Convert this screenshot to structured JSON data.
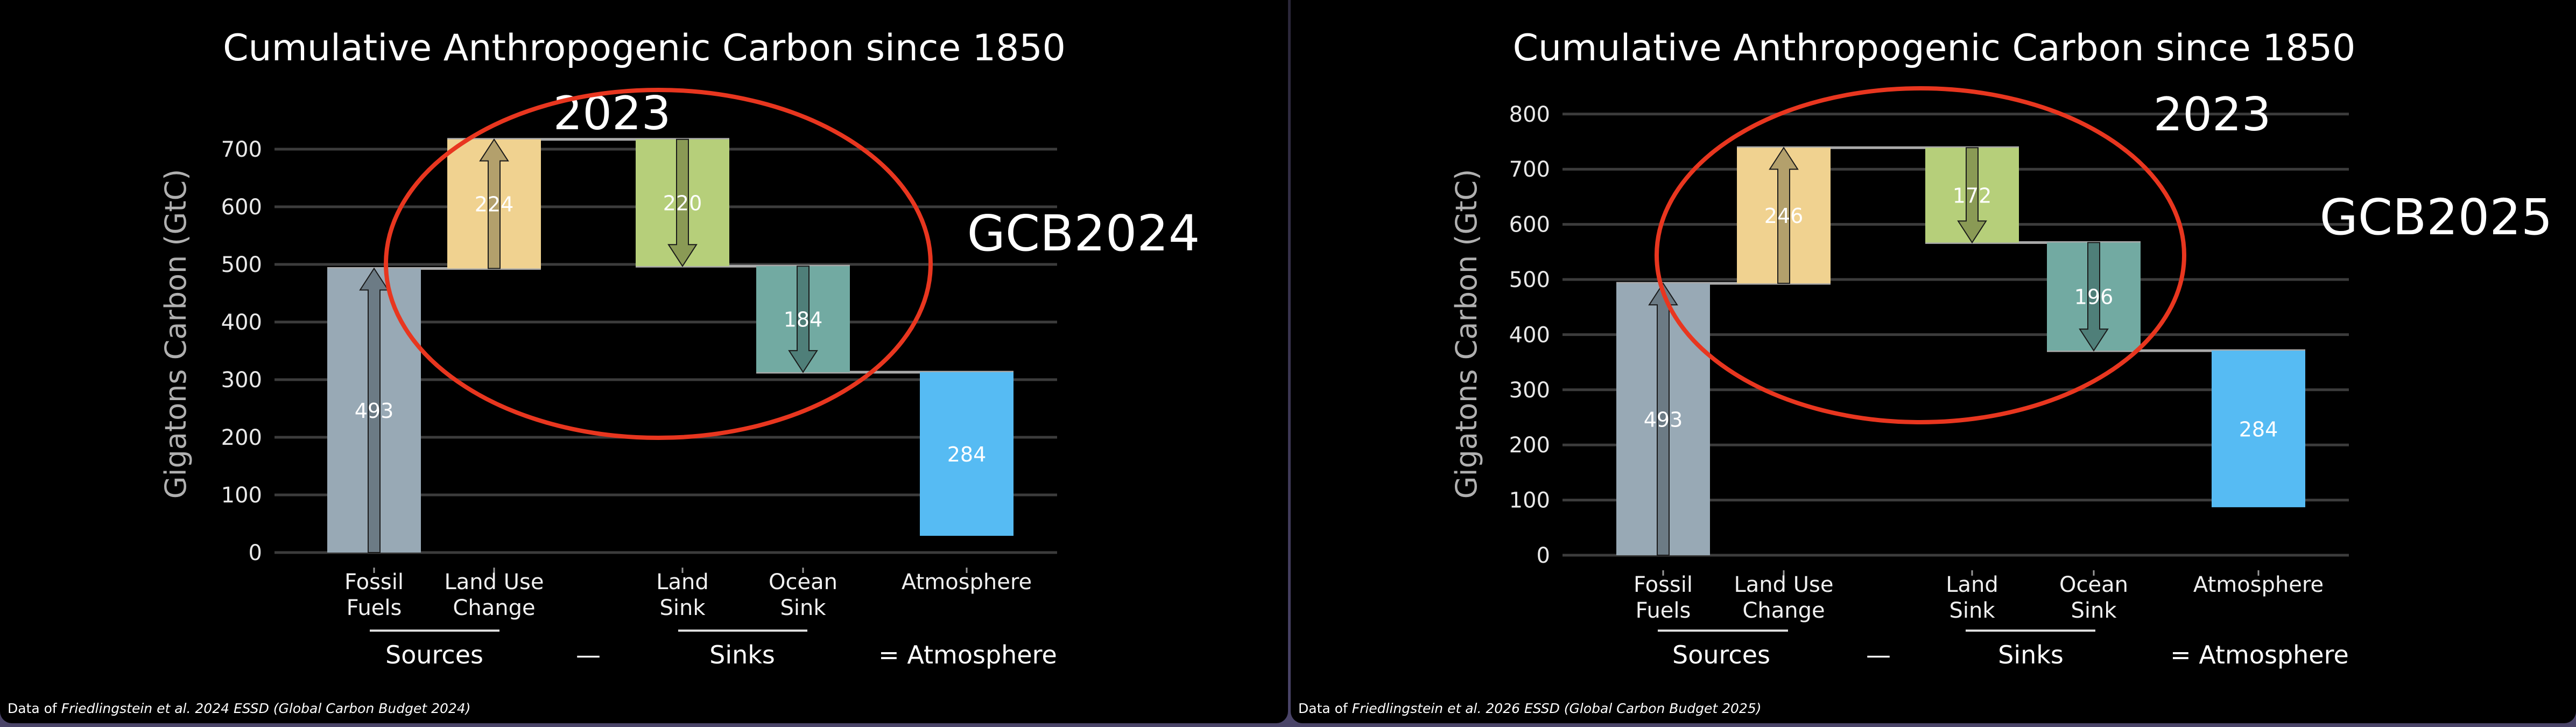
{
  "chart_data": [
    {
      "type": "bar",
      "subtype": "waterfall",
      "title": "Cumulative Anthropogenic Carbon since 1850",
      "ylabel": "Gigatons Carbon (GtC)",
      "ylim": [
        0,
        750
      ],
      "yticks": [
        0,
        100,
        200,
        300,
        400,
        500,
        600,
        700
      ],
      "grid": true,
      "categories": [
        [
          "Fossil",
          "Fuels"
        ],
        [
          "Land Use",
          "Change"
        ],
        [
          "Land",
          "Sink"
        ],
        [
          "Ocean",
          "Sink"
        ],
        [
          "Atmosphere"
        ]
      ],
      "values": [
        493,
        224,
        220,
        184,
        284
      ],
      "directions": [
        "up",
        "up",
        "down",
        "down",
        "none"
      ],
      "bar_ranges": [
        [
          0,
          493
        ],
        [
          493,
          717
        ],
        [
          497,
          717
        ],
        [
          313,
          497
        ],
        [
          29,
          313
        ]
      ],
      "colors": [
        "#98a9b5",
        "#f0d290",
        "#b6cf7a",
        "#72aaa2",
        "#56bbf3"
      ],
      "arrow_colors": [
        "#6c7b85",
        "#b3a06c",
        "#8a9a55",
        "#4f7f79",
        null
      ],
      "group_labels": {
        "sources": "Sources",
        "minus": "—",
        "sinks": "Sinks",
        "atmosphere": "= Atmosphere"
      },
      "annotation_year": "2023",
      "annotation_label": "GCB2024",
      "highlight_color": "#e8361f",
      "footnote_prefix": "Data of ",
      "footnote_italic": "Friedlingstein et al. 2024 ESSD (Global Carbon Budget 2024)"
    },
    {
      "type": "bar",
      "subtype": "waterfall",
      "title": "Cumulative Anthropogenic Carbon since 1850",
      "ylabel": "Gigatons Carbon (GtC)",
      "ylim": [
        0,
        820
      ],
      "yticks": [
        0,
        100,
        200,
        300,
        400,
        500,
        600,
        700,
        800
      ],
      "grid": true,
      "categories": [
        [
          "Fossil",
          "Fuels"
        ],
        [
          "Land Use",
          "Change"
        ],
        [
          "Land",
          "Sink"
        ],
        [
          "Ocean",
          "Sink"
        ],
        [
          "Atmosphere"
        ]
      ],
      "values": [
        493,
        246,
        172,
        196,
        284
      ],
      "directions": [
        "up",
        "up",
        "down",
        "down",
        "none"
      ],
      "bar_ranges": [
        [
          0,
          493
        ],
        [
          493,
          739
        ],
        [
          567,
          739
        ],
        [
          371,
          567
        ],
        [
          87,
          371
        ]
      ],
      "colors": [
        "#98a9b5",
        "#f0d290",
        "#b6cf7a",
        "#72aaa2",
        "#56bbf3"
      ],
      "arrow_colors": [
        "#6c7b85",
        "#b3a06c",
        "#8a9a55",
        "#4f7f79",
        null
      ],
      "group_labels": {
        "sources": "Sources",
        "minus": "—",
        "sinks": "Sinks",
        "atmosphere": "= Atmosphere"
      },
      "annotation_year": "2023",
      "annotation_label": "GCB2025",
      "highlight_color": "#e8361f",
      "footnote_prefix": "Data of ",
      "footnote_italic": "Friedlingstein et al. 2026 ESSD (Global Carbon Budget 2025)"
    }
  ]
}
